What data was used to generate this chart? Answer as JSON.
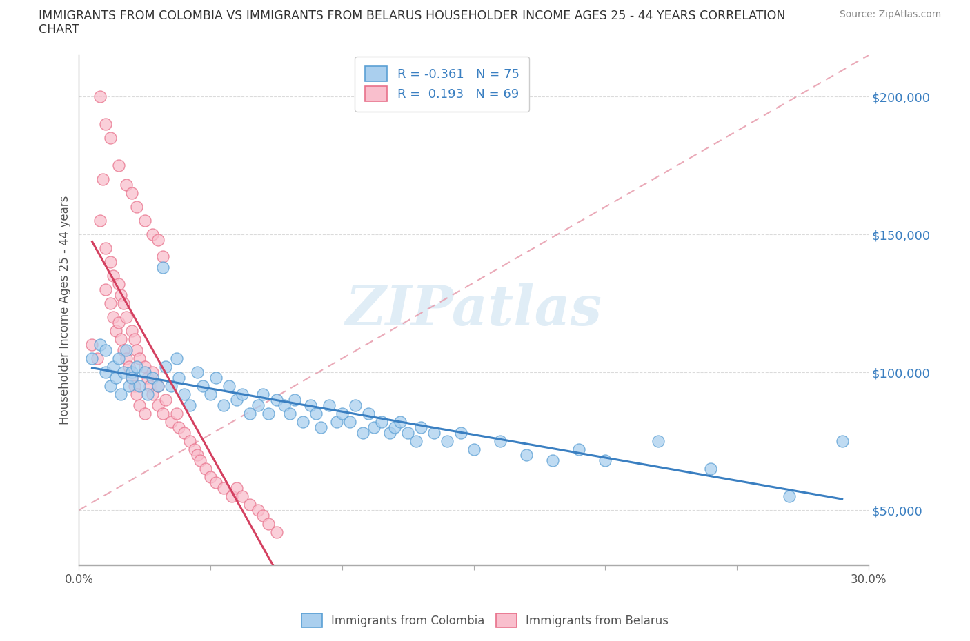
{
  "title_line1": "IMMIGRANTS FROM COLOMBIA VS IMMIGRANTS FROM BELARUS HOUSEHOLDER INCOME AGES 25 - 44 YEARS CORRELATION",
  "title_line2": "CHART",
  "source": "Source: ZipAtlas.com",
  "ylabel": "Householder Income Ages 25 - 44 years",
  "xlim": [
    0.0,
    0.3
  ],
  "ylim": [
    30000,
    215000
  ],
  "yticks": [
    50000,
    100000,
    150000,
    200000
  ],
  "ytick_labels": [
    "$50,000",
    "$100,000",
    "$150,000",
    "$200,000"
  ],
  "xticks": [
    0.0,
    0.05,
    0.1,
    0.15,
    0.2,
    0.25,
    0.3
  ],
  "xtick_labels": [
    "0.0%",
    "",
    "",
    "",
    "",
    "",
    "30.0%"
  ],
  "colombia_color": "#aacfee",
  "belarus_color": "#f9bfcd",
  "colombia_edge_color": "#5a9fd4",
  "belarus_edge_color": "#e8708a",
  "colombia_line_color": "#3a7fc1",
  "belarus_line_color": "#d44060",
  "dashed_line_color": "#e8a0b0",
  "R_colombia": -0.361,
  "N_colombia": 75,
  "R_belarus": 0.193,
  "N_belarus": 69,
  "legend_label_colombia": "Immigrants from Colombia",
  "legend_label_belarus": "Immigrants from Belarus",
  "watermark": "ZIPatlas",
  "colombia_x": [
    0.005,
    0.008,
    0.01,
    0.01,
    0.012,
    0.013,
    0.014,
    0.015,
    0.016,
    0.017,
    0.018,
    0.019,
    0.02,
    0.02,
    0.022,
    0.023,
    0.025,
    0.026,
    0.028,
    0.03,
    0.032,
    0.033,
    0.035,
    0.037,
    0.038,
    0.04,
    0.042,
    0.045,
    0.047,
    0.05,
    0.052,
    0.055,
    0.057,
    0.06,
    0.062,
    0.065,
    0.068,
    0.07,
    0.072,
    0.075,
    0.078,
    0.08,
    0.082,
    0.085,
    0.088,
    0.09,
    0.092,
    0.095,
    0.098,
    0.1,
    0.103,
    0.105,
    0.108,
    0.11,
    0.112,
    0.115,
    0.118,
    0.12,
    0.122,
    0.125,
    0.128,
    0.13,
    0.135,
    0.14,
    0.145,
    0.15,
    0.16,
    0.17,
    0.18,
    0.19,
    0.2,
    0.22,
    0.24,
    0.27,
    0.29
  ],
  "colombia_y": [
    105000,
    110000,
    100000,
    108000,
    95000,
    102000,
    98000,
    105000,
    92000,
    100000,
    108000,
    95000,
    100000,
    98000,
    102000,
    95000,
    100000,
    92000,
    98000,
    95000,
    138000,
    102000,
    95000,
    105000,
    98000,
    92000,
    88000,
    100000,
    95000,
    92000,
    98000,
    88000,
    95000,
    90000,
    92000,
    85000,
    88000,
    92000,
    85000,
    90000,
    88000,
    85000,
    90000,
    82000,
    88000,
    85000,
    80000,
    88000,
    82000,
    85000,
    82000,
    88000,
    78000,
    85000,
    80000,
    82000,
    78000,
    80000,
    82000,
    78000,
    75000,
    80000,
    78000,
    75000,
    78000,
    72000,
    75000,
    70000,
    68000,
    72000,
    68000,
    75000,
    65000,
    55000,
    75000
  ],
  "belarus_x": [
    0.005,
    0.007,
    0.008,
    0.009,
    0.01,
    0.01,
    0.012,
    0.012,
    0.013,
    0.013,
    0.014,
    0.015,
    0.015,
    0.016,
    0.016,
    0.017,
    0.017,
    0.018,
    0.018,
    0.019,
    0.02,
    0.02,
    0.021,
    0.021,
    0.022,
    0.022,
    0.023,
    0.023,
    0.025,
    0.025,
    0.026,
    0.027,
    0.028,
    0.028,
    0.03,
    0.03,
    0.032,
    0.033,
    0.035,
    0.037,
    0.038,
    0.04,
    0.042,
    0.044,
    0.045,
    0.046,
    0.048,
    0.05,
    0.052,
    0.055,
    0.058,
    0.06,
    0.062,
    0.065,
    0.068,
    0.07,
    0.072,
    0.075,
    0.008,
    0.01,
    0.012,
    0.015,
    0.018,
    0.02,
    0.022,
    0.025,
    0.028,
    0.03,
    0.032
  ],
  "belarus_y": [
    110000,
    105000,
    155000,
    170000,
    130000,
    145000,
    125000,
    140000,
    120000,
    135000,
    115000,
    118000,
    132000,
    112000,
    128000,
    108000,
    125000,
    105000,
    120000,
    102000,
    98000,
    115000,
    95000,
    112000,
    92000,
    108000,
    88000,
    105000,
    85000,
    102000,
    98000,
    95000,
    92000,
    100000,
    88000,
    95000,
    85000,
    90000,
    82000,
    85000,
    80000,
    78000,
    75000,
    72000,
    70000,
    68000,
    65000,
    62000,
    60000,
    58000,
    55000,
    58000,
    55000,
    52000,
    50000,
    48000,
    45000,
    42000,
    200000,
    190000,
    185000,
    175000,
    168000,
    165000,
    160000,
    155000,
    150000,
    148000,
    142000
  ]
}
